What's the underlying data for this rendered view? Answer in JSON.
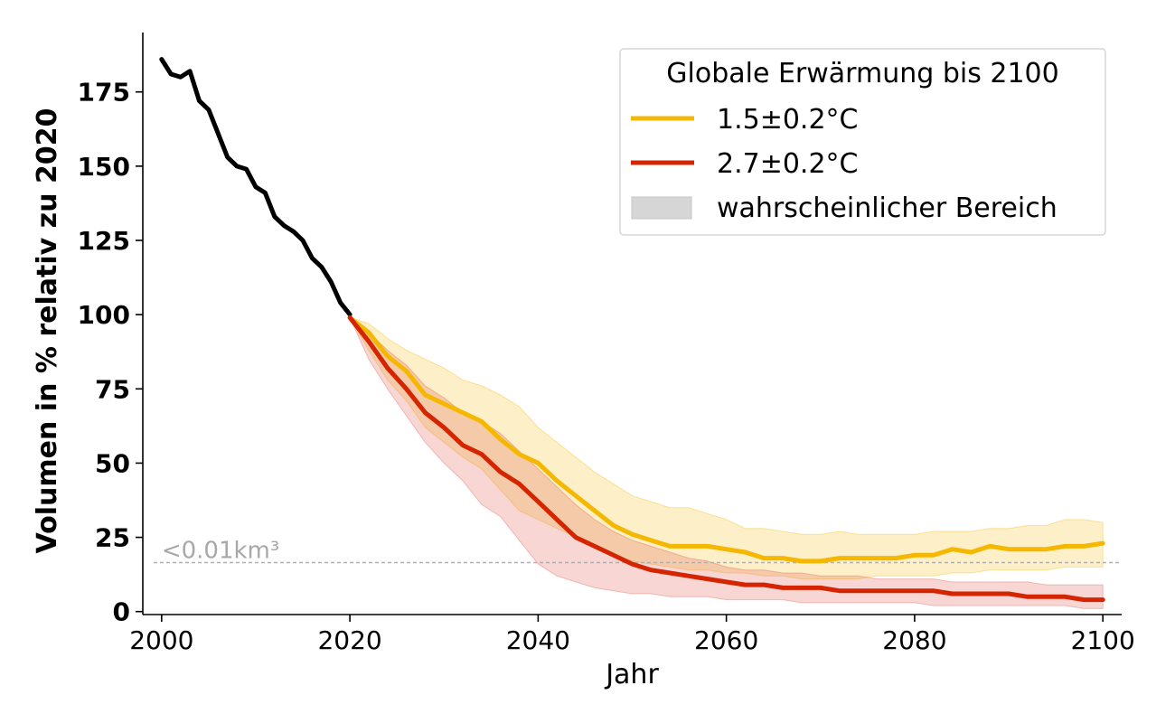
{
  "chart_data": {
    "type": "line",
    "xlabel": "Jahr",
    "ylabel": "Volumen in % relativ zu 2020",
    "xlim": [
      1998,
      2102
    ],
    "ylim": [
      -1,
      195
    ],
    "xticks": [
      2000,
      2020,
      2040,
      2060,
      2080,
      2100
    ],
    "yticks": [
      0,
      25,
      50,
      75,
      100,
      125,
      150,
      175
    ],
    "grid": false,
    "legend": {
      "title": "Globale Erwärmung bis 2100",
      "placement": "top-right",
      "entries": [
        "1.5±0.2°C",
        "2.7±0.2°C",
        "wahrscheinlicher Bereich"
      ]
    },
    "threshold": {
      "value": 16.5,
      "label": "<0.01km³",
      "color": "#b0b0b0"
    },
    "historical": {
      "color": "#000000",
      "x": [
        2000,
        2001,
        2002,
        2003,
        2004,
        2005,
        2006,
        2007,
        2008,
        2009,
        2010,
        2011,
        2012,
        2013,
        2014,
        2015,
        2016,
        2017,
        2018,
        2019,
        2020
      ],
      "y": [
        186,
        181,
        180,
        182,
        172,
        169,
        161,
        153,
        150,
        149,
        143,
        141,
        133,
        130,
        128,
        125,
        119,
        116,
        111,
        104,
        100
      ]
    },
    "series": [
      {
        "name": "1.5±0.2°C",
        "color": "#f5b800",
        "fill": "#f5b800",
        "x": [
          2020,
          2022,
          2024,
          2026,
          2028,
          2030,
          2032,
          2034,
          2036,
          2038,
          2040,
          2042,
          2044,
          2046,
          2048,
          2050,
          2052,
          2054,
          2056,
          2058,
          2060,
          2062,
          2064,
          2066,
          2068,
          2070,
          2072,
          2074,
          2076,
          2078,
          2080,
          2082,
          2084,
          2086,
          2088,
          2090,
          2092,
          2094,
          2096,
          2098,
          2100
        ],
        "y": [
          99,
          94,
          86,
          81,
          73,
          70,
          67,
          64,
          58,
          53,
          50,
          44,
          39,
          34,
          29,
          26,
          24,
          22,
          22,
          22,
          21,
          20,
          18,
          18,
          17,
          17,
          18,
          18,
          18,
          18,
          19,
          19,
          21,
          20,
          22,
          21,
          21,
          21,
          22,
          22,
          23
        ],
        "lower": [
          99,
          88,
          78,
          71,
          62,
          57,
          52,
          48,
          41,
          34,
          31,
          28,
          25,
          22,
          19,
          17,
          16,
          15,
          14,
          14,
          13,
          13,
          12,
          12,
          11,
          11,
          11,
          11,
          12,
          12,
          12,
          12,
          13,
          13,
          14,
          14,
          14,
          14,
          15,
          15,
          15
        ],
        "upper": [
          99,
          97,
          92,
          88,
          85,
          82,
          78,
          76,
          73,
          69,
          62,
          57,
          52,
          47,
          43,
          39,
          37,
          35,
          35,
          33,
          31,
          28,
          28,
          27,
          26,
          26,
          27,
          26,
          26,
          26,
          26,
          27,
          27,
          27,
          28,
          28,
          29,
          29,
          31,
          31,
          30
        ]
      },
      {
        "name": "2.7±0.2°C",
        "color": "#d42400",
        "fill": "#e05a50",
        "x": [
          2020,
          2022,
          2024,
          2026,
          2028,
          2030,
          2032,
          2034,
          2036,
          2038,
          2040,
          2042,
          2044,
          2046,
          2048,
          2050,
          2052,
          2054,
          2056,
          2058,
          2060,
          2062,
          2064,
          2066,
          2068,
          2070,
          2072,
          2074,
          2076,
          2078,
          2080,
          2082,
          2084,
          2086,
          2088,
          2090,
          2092,
          2094,
          2096,
          2098,
          2100
        ],
        "y": [
          99,
          91,
          82,
          75,
          67,
          62,
          56,
          53,
          47,
          43,
          37,
          31,
          25,
          22,
          19,
          16,
          14,
          13,
          12,
          11,
          10,
          9,
          9,
          8,
          8,
          8,
          7,
          7,
          7,
          7,
          7,
          7,
          6,
          6,
          6,
          6,
          5,
          5,
          5,
          4,
          4
        ],
        "lower": [
          99,
          85,
          75,
          66,
          57,
          50,
          44,
          36,
          32,
          24,
          16,
          12,
          10,
          8,
          7,
          6,
          6,
          5,
          5,
          5,
          4,
          4,
          4,
          4,
          3,
          3,
          3,
          3,
          3,
          3,
          3,
          2,
          2,
          2,
          2,
          2,
          2,
          2,
          2,
          1,
          1
        ],
        "upper": [
          99,
          94,
          88,
          83,
          76,
          72,
          67,
          64,
          60,
          54,
          48,
          42,
          36,
          31,
          27,
          24,
          22,
          20,
          18,
          17,
          15,
          14,
          14,
          13,
          13,
          12,
          12,
          12,
          11,
          11,
          11,
          11,
          10,
          10,
          10,
          10,
          10,
          9,
          9,
          9,
          9
        ]
      }
    ]
  }
}
